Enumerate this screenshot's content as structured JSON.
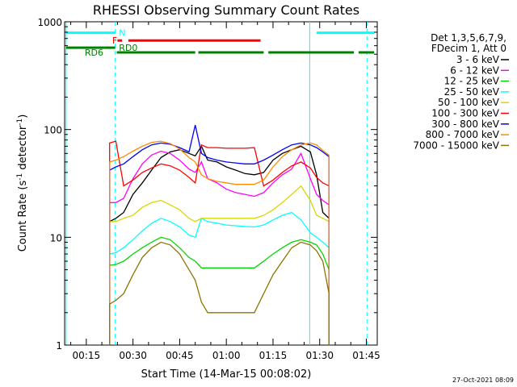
{
  "chart_data": {
    "type": "line",
    "title": "RHESSI Observing Summary Count Rates",
    "xlabel": "Start Time (14-Mar-15 00:08:02)",
    "ylabel_main": "Count Rate (s",
    "ylabel_sup1": "-1",
    "ylabel_mid": " detector",
    "ylabel_sup2": "-1",
    "ylabel_end": ")",
    "date_stamp": "27-Oct-2021 08:09",
    "x_ticks": [
      "00:15",
      "00:30",
      "00:45",
      "01:00",
      "01:15",
      "01:30",
      "01:45"
    ],
    "x_tick_minutes": [
      15,
      30,
      45,
      60,
      75,
      90,
      105
    ],
    "xlim_minutes": [
      8.03,
      108.5
    ],
    "y_scale": "log",
    "ylim": [
      1,
      1000
    ],
    "y_tick_labels": [
      "1",
      "10",
      "100",
      "1000"
    ],
    "legend_placement": "right, outside plot",
    "legend_header": [
      "Det 1,3,5,6,7,9,",
      "FDecim 1, Att 0"
    ],
    "series": [
      {
        "name": "3 - 6 keV",
        "color": "#000000",
        "x": [
          22.5,
          24.5,
          27,
          30,
          33,
          36,
          39,
          42,
          45,
          48,
          50,
          52,
          54,
          57,
          60,
          63,
          66,
          69,
          72,
          75,
          78,
          81,
          84,
          87,
          89,
          91,
          93
        ],
        "values": [
          14,
          15,
          17,
          25,
          32,
          42,
          55,
          62,
          65,
          60,
          57,
          70,
          52,
          50,
          45,
          42,
          39,
          38,
          40,
          52,
          60,
          65,
          70,
          62,
          38,
          17,
          15
        ]
      },
      {
        "name": "6 - 12 keV",
        "color": "#ff00ff",
        "x": [
          22.5,
          24.5,
          27,
          30,
          33,
          36,
          39,
          42,
          45,
          48,
          50,
          52,
          54,
          57,
          60,
          63,
          66,
          69,
          72,
          75,
          78,
          81,
          84,
          87,
          89,
          91,
          93
        ],
        "values": [
          21,
          21,
          23,
          35,
          48,
          58,
          63,
          60,
          52,
          43,
          40,
          50,
          35,
          32,
          28,
          26,
          25,
          24,
          26,
          32,
          38,
          43,
          60,
          35,
          25,
          22,
          20
        ]
      },
      {
        "name": "12 - 25 keV",
        "color": "#00d800",
        "x": [
          22.5,
          24.5,
          27,
          30,
          33,
          36,
          39,
          42,
          45,
          48,
          50,
          52,
          54,
          57,
          60,
          63,
          66,
          69,
          72,
          75,
          78,
          81,
          84,
          87,
          89,
          91,
          93
        ],
        "values": [
          5.5,
          5.6,
          6,
          7,
          8,
          9,
          10,
          9.5,
          8,
          6.5,
          6,
          5.2,
          5.2,
          5.2,
          5.2,
          5.2,
          5.2,
          5.2,
          6,
          7,
          8,
          9,
          9.5,
          9,
          8.5,
          7,
          5
        ]
      },
      {
        "name": "25 - 50 keV",
        "color": "#00ffff",
        "x": [
          22.5,
          24.5,
          27,
          30,
          33,
          36,
          39,
          42,
          45,
          48,
          50,
          52,
          54,
          57,
          60,
          63,
          66,
          69,
          72,
          75,
          78,
          81,
          84,
          87,
          89,
          91,
          93
        ],
        "values": [
          7,
          7.2,
          8,
          9.5,
          11.5,
          13.5,
          15,
          14,
          12.5,
          10.5,
          10,
          15,
          14,
          13.5,
          13,
          12.8,
          12.6,
          12.5,
          13,
          14.5,
          16,
          17,
          14.5,
          11,
          10,
          9,
          8
        ]
      },
      {
        "name": "50 - 100 keV",
        "color": "#d8d800",
        "x": [
          22.5,
          24.5,
          27,
          30,
          33,
          36,
          39,
          42,
          45,
          48,
          50,
          52,
          54,
          57,
          60,
          63,
          66,
          69,
          72,
          75,
          78,
          81,
          84,
          87,
          89,
          91,
          93
        ],
        "values": [
          14,
          14,
          15,
          16,
          19,
          21,
          22,
          20,
          18,
          15,
          14,
          15,
          15,
          15,
          15,
          15,
          15,
          15,
          16,
          18,
          21,
          25,
          30,
          22,
          16,
          15,
          14
        ]
      },
      {
        "name": "100 - 300 keV",
        "color": "#ff0000",
        "x": [
          22.5,
          24.5,
          27,
          30,
          33,
          36,
          39,
          42,
          45,
          48,
          50,
          52,
          54,
          57,
          60,
          63,
          66,
          69,
          72,
          75,
          78,
          81,
          84,
          87,
          89,
          91,
          93
        ],
        "values": [
          75,
          78,
          30,
          34,
          40,
          44,
          48,
          46,
          42,
          36,
          32,
          72,
          68,
          68,
          67,
          67,
          67,
          68,
          30,
          34,
          40,
          46,
          50,
          44,
          36,
          32,
          30
        ]
      },
      {
        "name": "300 - 800 keV",
        "color": "#0000ff",
        "x": [
          22.5,
          24.5,
          27,
          30,
          33,
          36,
          39,
          42,
          45,
          48,
          50,
          52,
          54,
          57,
          60,
          63,
          66,
          69,
          72,
          75,
          78,
          81,
          84,
          87,
          89,
          91,
          93
        ],
        "values": [
          42,
          45,
          48,
          56,
          65,
          72,
          75,
          73,
          68,
          62,
          110,
          60,
          55,
          52,
          50,
          49,
          48,
          48,
          52,
          58,
          65,
          72,
          75,
          72,
          68,
          62,
          56
        ]
      },
      {
        "name": "800 - 7000 keV",
        "color": "#ff8c00",
        "x": [
          22.5,
          24.5,
          27,
          30,
          33,
          36,
          39,
          42,
          45,
          48,
          50,
          52,
          54,
          57,
          60,
          63,
          66,
          69,
          72,
          75,
          78,
          81,
          84,
          87,
          89,
          91,
          93
        ],
        "values": [
          50,
          52,
          56,
          63,
          70,
          76,
          78,
          74,
          66,
          55,
          50,
          38,
          35,
          33,
          32,
          31,
          31,
          31,
          34,
          45,
          56,
          65,
          72,
          75,
          72,
          64,
          58
        ]
      },
      {
        "name": "7000 - 15000 keV",
        "color": "#8b7500",
        "x": [
          22.5,
          24.5,
          27,
          30,
          33,
          36,
          39,
          42,
          45,
          48,
          50,
          52,
          54,
          57,
          60,
          63,
          66,
          69,
          72,
          75,
          78,
          81,
          84,
          87,
          89,
          91,
          93
        ],
        "values": [
          2.4,
          2.6,
          3,
          4.5,
          6.5,
          8,
          9,
          8.5,
          7,
          5,
          4,
          2.5,
          2,
          2,
          2,
          2,
          2,
          2,
          3,
          4.5,
          6,
          8,
          9,
          8.5,
          7.5,
          6,
          3
        ]
      }
    ],
    "annotations": [
      {
        "label": "N",
        "color": "#00ffff",
        "row_value": 790,
        "segments": [
          [
            8.5,
            24.3
          ],
          [
            89,
            107.5
          ]
        ],
        "label_x": 25.5
      },
      {
        "label": "F",
        "color": "#ff0000",
        "row_value": 670,
        "segments": [
          [
            25,
            26.5
          ],
          [
            28.5,
            71
          ]
        ],
        "label_x": 23.3
      },
      {
        "label": "RD0",
        "color": "#008000",
        "row_value": 575,
        "segments": [
          [
            8.5,
            24.3
          ]
        ],
        "label_x": 25.5
      },
      {
        "label": "RD6",
        "color": "#008000",
        "row_value": 520,
        "segments": [
          [
            24.8,
            50
          ],
          [
            51,
            72
          ],
          [
            73.5,
            101
          ],
          [
            102.5,
            107.5
          ]
        ],
        "label_x": 14.5
      }
    ],
    "vertical_lines": [
      {
        "x": 8.5,
        "color": "#00ffff",
        "style": "solid"
      },
      {
        "x": 24.3,
        "color": "#00ffff",
        "style": "dashed"
      },
      {
        "x": 86.8,
        "color": "#00ffff",
        "style": "solid"
      },
      {
        "x": 105.2,
        "color": "#00ffff",
        "style": "dashed"
      }
    ]
  }
}
